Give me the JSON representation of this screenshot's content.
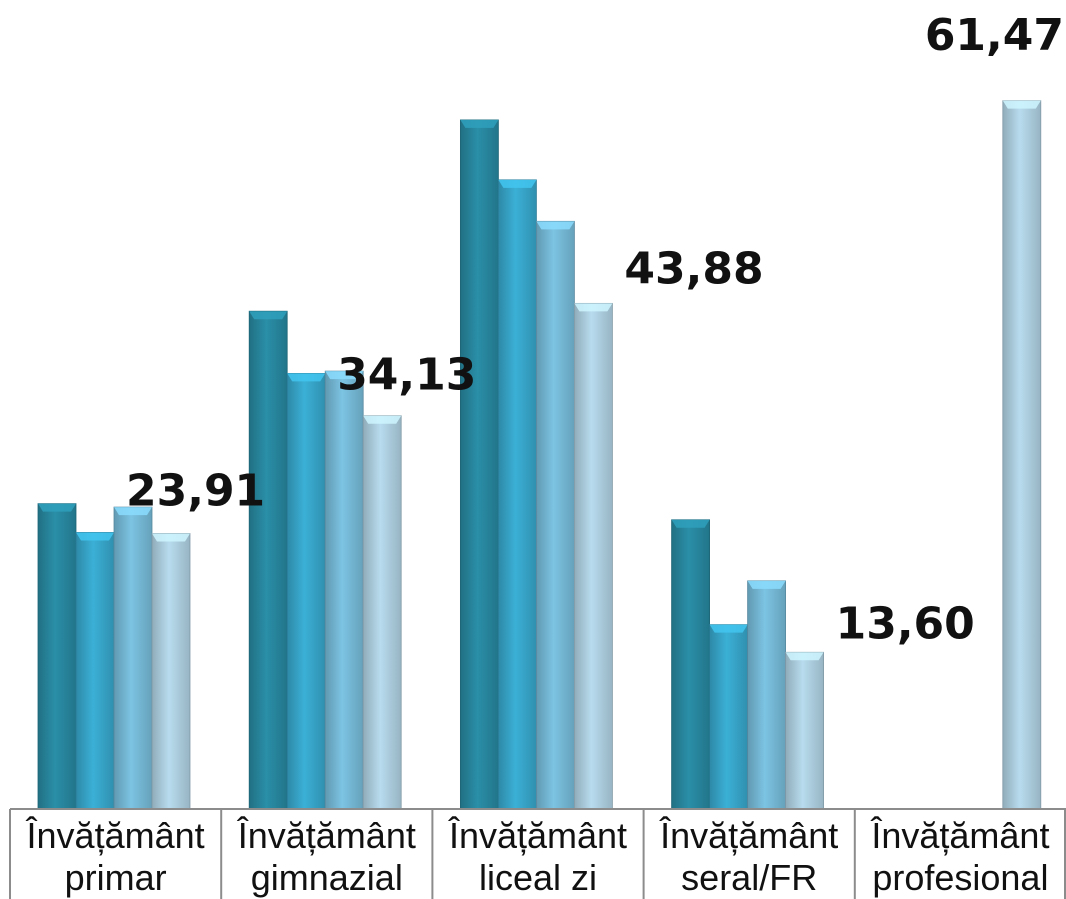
{
  "chart_data": {
    "type": "bar",
    "title": "",
    "xlabel": "",
    "ylabel": "",
    "ylim": [
      0,
      65
    ],
    "grid": false,
    "legend": "none",
    "categories": [
      [
        "Învățământ",
        "primar"
      ],
      [
        "Învățământ",
        "gimnazial"
      ],
      [
        "Învățământ",
        "liceal zi"
      ],
      [
        "Învățământ",
        "seral/FR"
      ],
      [
        "Învățământ",
        "profesional"
      ]
    ],
    "series": [
      {
        "color": "#2a8fa8",
        "values": [
          26.5,
          43.2,
          59.8,
          25.1,
          null
        ]
      },
      {
        "color": "#3bb0d6",
        "values": [
          24.0,
          37.8,
          54.6,
          16.0,
          null
        ]
      },
      {
        "color": "#7cc4e3",
        "values": [
          26.2,
          38.0,
          51.0,
          19.8,
          null
        ]
      },
      {
        "color": "#b8dcee",
        "values": [
          23.91,
          34.13,
          43.88,
          13.6,
          61.47
        ]
      }
    ],
    "data_labels": [
      {
        "category": 0,
        "text": "23,91"
      },
      {
        "category": 1,
        "text": "34,13"
      },
      {
        "category": 2,
        "text": "43,88"
      },
      {
        "category": 3,
        "text": "13,60"
      },
      {
        "category": 4,
        "text": "61,47"
      }
    ]
  }
}
